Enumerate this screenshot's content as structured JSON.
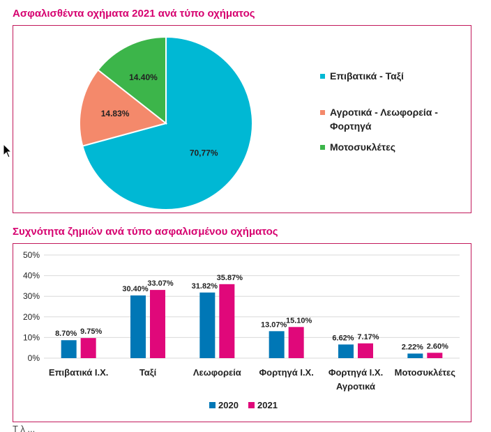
{
  "pie_title": "Ασφαλισθέντα οχήματα 2021 ανά τύπο οχήματος",
  "bar_title": "Συχνότητα ζημιών ανά τύπο ασφαλισμένου οχήματος",
  "footer_fragment": "Τ λ  ...",
  "chart_data": [
    {
      "type": "pie",
      "title": "Ασφαλισθέντα οχήματα 2021 ανά τύπο οχήματος",
      "slices": [
        {
          "name": "Επιβατικά - Ταξί",
          "value": 70.77,
          "label": "70,77%",
          "color": "#00b8d4"
        },
        {
          "name": "Αγροτικά - Λεωφορεία - Φορτηγά",
          "value": 14.83,
          "label": "14.83%",
          "color": "#f4896b"
        },
        {
          "name": "Μοτοσυκλέτες",
          "value": 14.4,
          "label": "14.40%",
          "color": "#3cb54a"
        }
      ],
      "legend": [
        {
          "lines": [
            "Επιβατικά - Ταξί"
          ],
          "color": "#00b8d4"
        },
        {
          "lines": [
            "Αγροτικά - Λεωφορεία -",
            "Φορτηγά"
          ],
          "color": "#f4896b"
        },
        {
          "lines": [
            "Μοτοσυκλέτες"
          ],
          "color": "#3cb54a"
        }
      ]
    },
    {
      "type": "bar",
      "title": "Συχνότητα ζημιών ανά τύπο ασφαλισμένου οχήματος",
      "categories": [
        [
          "Επιβατικά Ι.Χ."
        ],
        [
          "Ταξί"
        ],
        [
          "Λεωφορεία"
        ],
        [
          "Φορτηγά Ι.Χ."
        ],
        [
          "Φορτηγά Ι.Χ.",
          "Αγροτικά"
        ],
        [
          "Μοτοσυκλέτες"
        ]
      ],
      "series": [
        {
          "name": "2020",
          "color": "#0077b6",
          "values": [
            8.7,
            30.4,
            31.82,
            13.07,
            6.62,
            2.22
          ],
          "labels": [
            "8.70%",
            "30.40%",
            "31.82%",
            "13.07%",
            "6.62%",
            "2.22%"
          ]
        },
        {
          "name": "2021",
          "color": "#e0087a",
          "values": [
            9.75,
            33.07,
            35.87,
            15.1,
            7.17,
            2.6
          ],
          "labels": [
            "9.75%",
            "33.07%",
            "35.87%",
            "15.10%",
            "7.17%",
            "2.60%"
          ]
        }
      ],
      "yticks": [
        "0%",
        "10%",
        "20%",
        "30%",
        "40%",
        "50%"
      ],
      "ylim": [
        0,
        50
      ],
      "grid": true,
      "legend_position": "bottom"
    }
  ]
}
